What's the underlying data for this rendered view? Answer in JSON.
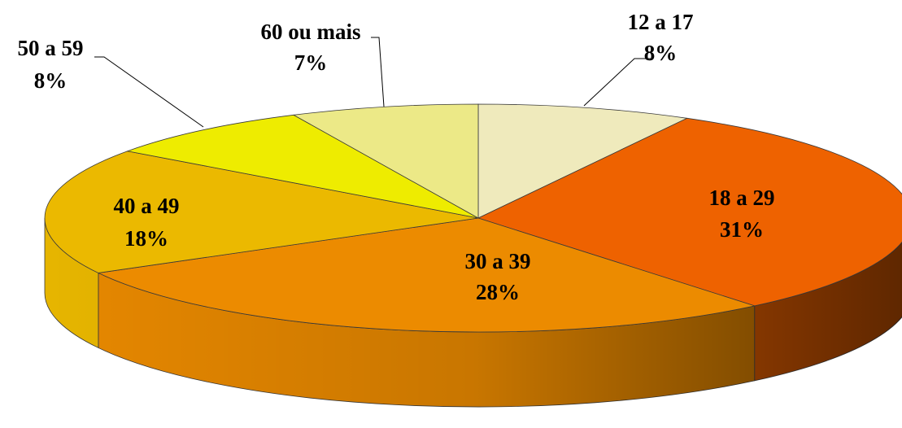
{
  "chart_data": {
    "type": "pie",
    "categories": [
      "12 a 17",
      "18 a 29",
      "30 a 39",
      "40 a 49",
      "50 a 59",
      "60 ou mais"
    ],
    "values": [
      8,
      31,
      28,
      18,
      8,
      7
    ],
    "value_labels": [
      "8%",
      "31%",
      "28%",
      "18%",
      "8%",
      "7%"
    ],
    "colors": [
      "#efeabc",
      "#ee6200",
      "#ec8b00",
      "#ebb900",
      "#eeec00",
      "#ece987"
    ]
  }
}
